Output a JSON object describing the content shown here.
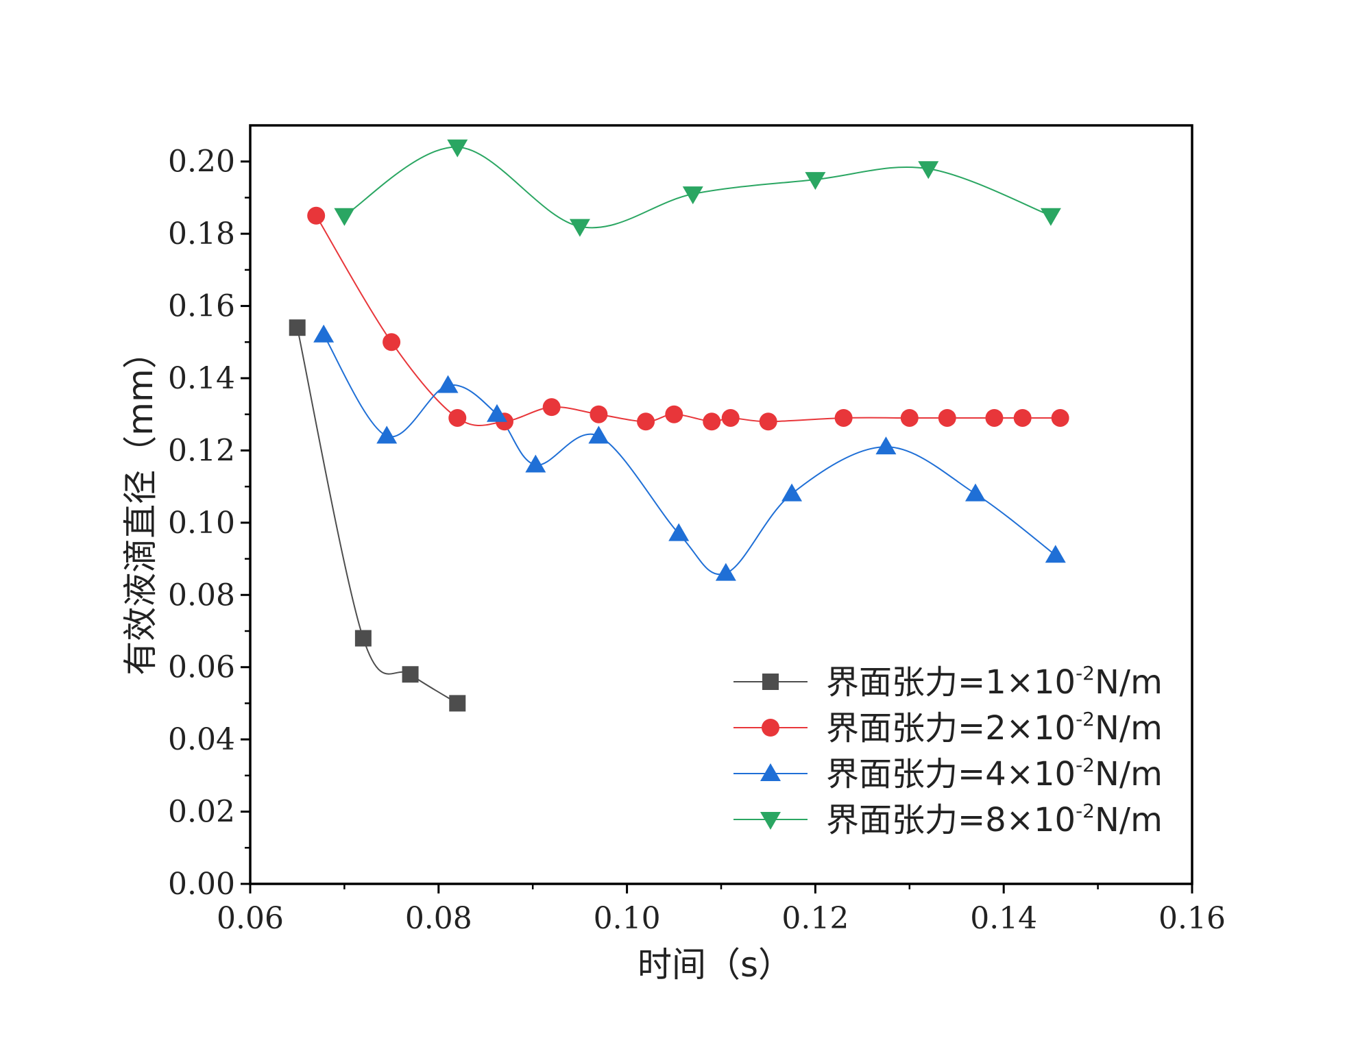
{
  "chart_data": {
    "type": "line",
    "title": "",
    "xlabel": "时间（s）",
    "ylabel": "有效液滴直径（mm）",
    "xlim": [
      0.06,
      0.16
    ],
    "ylim": [
      0.0,
      0.21
    ],
    "xticks": [
      "0.06",
      "0.08",
      "0.10",
      "0.12",
      "0.14",
      "0.16"
    ],
    "yticks": [
      "0.00",
      "0.02",
      "0.04",
      "0.06",
      "0.08",
      "0.10",
      "0.12",
      "0.14",
      "0.16",
      "0.18",
      "0.20"
    ],
    "legend_position": "bottom-right",
    "series": [
      {
        "name": "界面张力=1×10⁻²N/m",
        "legend_base": "界面张力=1×10",
        "legend_exp": "-2",
        "legend_unit": "N/m",
        "marker": "square",
        "color": "#4d4d4d",
        "x": [
          0.065,
          0.072,
          0.077,
          0.082
        ],
        "y": [
          0.154,
          0.068,
          0.058,
          0.05
        ]
      },
      {
        "name": "界面张力=2×10⁻²N/m",
        "legend_base": "界面张力=2×10",
        "legend_exp": "-2",
        "legend_unit": "N/m",
        "marker": "circle",
        "color": "#e8363a",
        "x": [
          0.067,
          0.075,
          0.082,
          0.087,
          0.092,
          0.097,
          0.102,
          0.105,
          0.109,
          0.111,
          0.115,
          0.123,
          0.13,
          0.134,
          0.139,
          0.142,
          0.146
        ],
        "y": [
          0.185,
          0.15,
          0.129,
          0.128,
          0.132,
          0.13,
          0.128,
          0.13,
          0.128,
          0.129,
          0.128,
          0.129,
          0.129,
          0.129,
          0.129,
          0.129,
          0.129
        ]
      },
      {
        "name": "界面张力=4×10⁻²N/m",
        "legend_base": "界面张力=4×10",
        "legend_exp": "-2",
        "legend_unit": "N/m",
        "marker": "triangle-up",
        "color": "#1f6fd6",
        "x": [
          0.0678,
          0.0745,
          0.081,
          0.0862,
          0.0903,
          0.097,
          0.1055,
          0.1105,
          0.1175,
          0.1275,
          0.137,
          0.1455
        ],
        "y": [
          0.152,
          0.124,
          0.138,
          0.13,
          0.116,
          0.124,
          0.097,
          0.086,
          0.108,
          0.121,
          0.108,
          0.091
        ]
      },
      {
        "name": "界面张力=8×10⁻²N/m",
        "legend_base": "界面张力=8×10",
        "legend_exp": "-2",
        "legend_unit": "N/m",
        "marker": "triangle-down",
        "color": "#2aa662",
        "x": [
          0.07,
          0.082,
          0.095,
          0.107,
          0.12,
          0.132,
          0.145
        ],
        "y": [
          0.185,
          0.204,
          0.182,
          0.191,
          0.195,
          0.198,
          0.185
        ]
      }
    ]
  }
}
